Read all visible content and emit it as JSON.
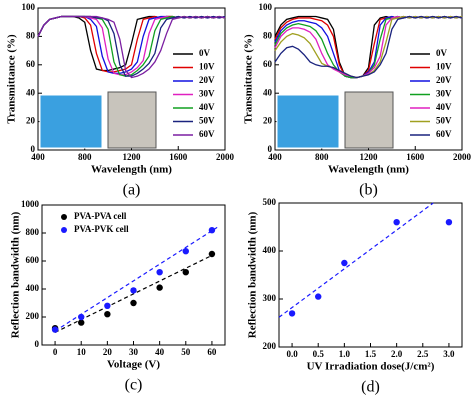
{
  "chart_data": [
    {
      "type": "line",
      "panel_label": "(a)",
      "xlabel": "Wavelength (nm)",
      "ylabel": "Transmittance (%)",
      "xlim": [
        400,
        2000
      ],
      "ylim": [
        0,
        100
      ],
      "xticks": [
        400,
        800,
        1200,
        1600,
        2000
      ],
      "yticks": [
        0,
        20,
        40,
        60,
        80,
        100
      ],
      "legend": "right",
      "x": [
        400,
        450,
        500,
        550,
        600,
        650,
        700,
        750,
        800,
        850,
        900,
        950,
        1000,
        1050,
        1100,
        1150,
        1200,
        1250,
        1300,
        1350,
        1400,
        1450,
        1500,
        1550,
        1600,
        1650,
        1700,
        1750,
        1800,
        1850,
        1900,
        1950,
        2000
      ],
      "series": [
        {
          "name": "0V",
          "color": "#000000",
          "values": [
            80,
            88,
            92,
            93,
            94,
            94,
            94,
            93,
            90,
            70,
            57,
            56,
            56,
            57,
            58,
            60,
            75,
            92,
            93,
            94,
            94,
            93,
            94,
            94,
            93,
            94,
            93,
            94,
            93,
            94,
            93,
            94,
            93
          ]
        },
        {
          "name": "10V",
          "color": "#e00000",
          "values": [
            80,
            88,
            92,
            93,
            94,
            94,
            94,
            94,
            93,
            88,
            68,
            56,
            55,
            55,
            56,
            57,
            60,
            78,
            92,
            93,
            94,
            93,
            94,
            94,
            93,
            94,
            93,
            94,
            93,
            94,
            93,
            94,
            93
          ]
        },
        {
          "name": "20V",
          "color": "#1010e0",
          "values": [
            80,
            88,
            92,
            93,
            94,
            94,
            94,
            94,
            94,
            92,
            87,
            66,
            55,
            54,
            54,
            55,
            57,
            62,
            80,
            92,
            93,
            94,
            94,
            93,
            94,
            93,
            94,
            93,
            94,
            93,
            94,
            93,
            94
          ]
        },
        {
          "name": "30V",
          "color": "#e020c0",
          "values": [
            80,
            88,
            92,
            93,
            94,
            94,
            94,
            94,
            94,
            93,
            92,
            86,
            64,
            54,
            53,
            53,
            55,
            58,
            63,
            82,
            92,
            93,
            94,
            93,
            94,
            93,
            94,
            93,
            94,
            93,
            94,
            93,
            94
          ]
        },
        {
          "name": "40V",
          "color": "#10a020",
          "values": [
            80,
            88,
            92,
            93,
            94,
            94,
            94,
            94,
            94,
            94,
            93,
            92,
            85,
            62,
            53,
            52,
            53,
            56,
            60,
            66,
            84,
            92,
            93,
            94,
            93,
            94,
            93,
            94,
            93,
            94,
            93,
            94,
            93
          ]
        },
        {
          "name": "50V",
          "color": "#1a237e",
          "values": [
            80,
            88,
            92,
            93,
            94,
            94,
            94,
            94,
            94,
            94,
            93,
            93,
            91,
            82,
            60,
            52,
            52,
            54,
            57,
            61,
            68,
            86,
            92,
            93,
            94,
            93,
            94,
            93,
            94,
            93,
            94,
            93,
            94
          ]
        },
        {
          "name": "60V",
          "color": "#7b1fa2",
          "values": [
            80,
            88,
            92,
            93,
            94,
            94,
            94,
            94,
            94,
            94,
            94,
            93,
            92,
            90,
            78,
            56,
            51,
            52,
            54,
            57,
            62,
            70,
            82,
            92,
            93,
            94,
            93,
            94,
            93,
            94,
            93,
            94,
            93
          ]
        }
      ]
    },
    {
      "type": "line",
      "panel_label": "(b)",
      "xlabel": "Wavelength (nm)",
      "ylabel": "Transmittance (%)",
      "xlim": [
        400,
        2000
      ],
      "ylim": [
        0,
        100
      ],
      "xticks": [
        400,
        800,
        1200,
        1600,
        2000
      ],
      "yticks": [
        0,
        20,
        40,
        60,
        80,
        100
      ],
      "legend": "right",
      "x": [
        400,
        450,
        500,
        550,
        600,
        650,
        700,
        750,
        800,
        850,
        900,
        950,
        1000,
        1050,
        1100,
        1150,
        1200,
        1250,
        1300,
        1350,
        1400,
        1450,
        1500,
        1550,
        1600,
        1650,
        1700,
        1750,
        1800,
        1850,
        1900,
        1950,
        2000
      ],
      "series": [
        {
          "name": "0V",
          "color": "#000000",
          "values": [
            80,
            88,
            92,
            93,
            94,
            94,
            94,
            94,
            93,
            92,
            85,
            62,
            52,
            51,
            51,
            52,
            58,
            88,
            93,
            94,
            93,
            94,
            93,
            94,
            93,
            94,
            93,
            94,
            93,
            94,
            93,
            94,
            93
          ]
        },
        {
          "name": "10V",
          "color": "#e00000",
          "values": [
            78,
            86,
            90,
            92,
            93,
            93,
            93,
            92,
            91,
            88,
            80,
            60,
            52,
            51,
            51,
            52,
            56,
            75,
            92,
            93,
            94,
            93,
            94,
            93,
            94,
            93,
            94,
            93,
            94,
            93,
            94,
            93,
            94
          ]
        },
        {
          "name": "20V",
          "color": "#1010e0",
          "values": [
            76,
            84,
            88,
            90,
            91,
            91,
            90,
            89,
            86,
            80,
            68,
            56,
            52,
            51,
            51,
            52,
            55,
            62,
            88,
            93,
            94,
            93,
            94,
            93,
            94,
            93,
            94,
            93,
            94,
            93,
            94,
            93,
            94
          ]
        },
        {
          "name": "30V",
          "color": "#10a020",
          "values": [
            74,
            82,
            86,
            88,
            89,
            88,
            87,
            84,
            78,
            68,
            60,
            55,
            52,
            51,
            51,
            52,
            54,
            60,
            78,
            92,
            93,
            94,
            93,
            94,
            93,
            94,
            93,
            94,
            93,
            94,
            93,
            94,
            93
          ]
        },
        {
          "name": "40V",
          "color": "#e020c0",
          "values": [
            72,
            80,
            84,
            86,
            86,
            85,
            83,
            78,
            68,
            60,
            57,
            55,
            53,
            52,
            51,
            52,
            54,
            58,
            66,
            88,
            93,
            94,
            93,
            94,
            93,
            94,
            93,
            94,
            93,
            94,
            93,
            94,
            93
          ]
        },
        {
          "name": "50V",
          "color": "#a0a020",
          "values": [
            70,
            76,
            80,
            82,
            81,
            79,
            75,
            68,
            61,
            59,
            58,
            56,
            54,
            52,
            51,
            52,
            53,
            56,
            62,
            76,
            92,
            93,
            94,
            93,
            94,
            93,
            94,
            93,
            94,
            93,
            94,
            93,
            94
          ]
        },
        {
          "name": "60V",
          "color": "#1a237e",
          "values": [
            62,
            68,
            72,
            73,
            71,
            67,
            62,
            60,
            59,
            59,
            58,
            56,
            54,
            52,
            51,
            52,
            53,
            55,
            60,
            68,
            85,
            92,
            93,
            94,
            93,
            94,
            93,
            94,
            93,
            94,
            93,
            94,
            93
          ]
        }
      ]
    },
    {
      "type": "scatter",
      "panel_label": "(c)",
      "xlabel": "Voltage (V)",
      "ylabel": "Reflection bandwidth (nm)",
      "xlim": [
        -5,
        65
      ],
      "ylim": [
        0,
        1000
      ],
      "xticks": [
        0,
        10,
        20,
        30,
        40,
        50,
        60
      ],
      "yticks": [
        0,
        200,
        400,
        600,
        800,
        1000
      ],
      "legend": "upper left",
      "series": [
        {
          "name": "PVA-PVA cell",
          "color": "#000000",
          "x": [
            0,
            10,
            20,
            30,
            40,
            50,
            60
          ],
          "values": [
            120,
            160,
            220,
            300,
            410,
            520,
            650
          ],
          "trend_x": [
            0,
            60
          ],
          "trend_y": [
            90,
            640
          ]
        },
        {
          "name": "PVA-PVK cell",
          "color": "#1a1aff",
          "x": [
            0,
            10,
            20,
            30,
            40,
            50,
            60
          ],
          "values": [
            110,
            200,
            280,
            390,
            520,
            670,
            820
          ],
          "trend_x": [
            0,
            62
          ],
          "trend_y": [
            100,
            840
          ]
        }
      ]
    },
    {
      "type": "scatter",
      "panel_label": "(d)",
      "xlabel": "UV Irradiation dose(J/cm²)",
      "ylabel": "Reflection bandwidth (nm)",
      "xlim": [
        -0.25,
        3.25
      ],
      "ylim": [
        200,
        500
      ],
      "xticks": [
        {
          "value": 0,
          "label": "0.0"
        },
        0.5,
        {
          "value": 1,
          "label": "1.0"
        },
        1.5,
        {
          "value": 2,
          "label": "2.0"
        },
        2.5,
        {
          "value": 3,
          "label": "3.0"
        }
      ],
      "yticks": [
        200,
        300,
        400,
        500
      ],
      "series": [
        {
          "color": "#1a1aff",
          "x": [
            0,
            0.5,
            1,
            2,
            3
          ],
          "values": [
            270,
            305,
            375,
            460,
            460
          ],
          "trend_x": [
            -0.25,
            2.7
          ],
          "trend_y": [
            262,
            500
          ]
        }
      ]
    }
  ]
}
